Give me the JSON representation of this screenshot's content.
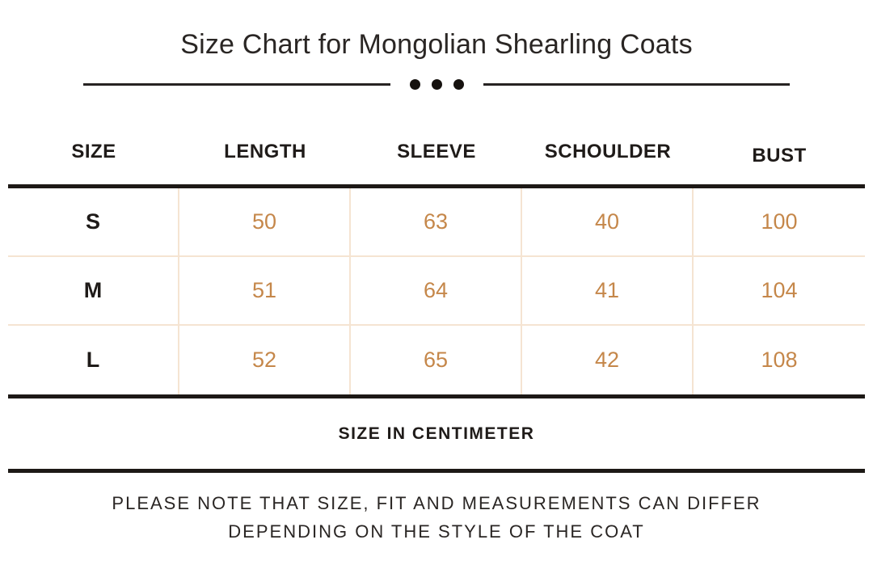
{
  "title": "Size Chart for Mongolian Shearling Coats",
  "chart_data": {
    "type": "table",
    "title": "Size Chart for Mongolian Shearling Coats",
    "columns": [
      "SIZE",
      "LENGTH",
      "SLEEVE",
      "SCHOULDER",
      "BUST"
    ],
    "rows": [
      [
        "S",
        "50",
        "63",
        "40",
        "100"
      ],
      [
        "M",
        "51",
        "64",
        "41",
        "104"
      ],
      [
        "L",
        "52",
        "65",
        "42",
        "108"
      ]
    ],
    "unit": "SIZE IN CENTIMETER"
  },
  "footer": {
    "line1": "PLEASE NOTE THAT SIZE, FIT AND MEASUREMENTS CAN DIFFER",
    "line2": "DEPENDING ON THE STYLE OF THE COAT"
  },
  "colors": {
    "background": "#ffffff",
    "text": "#221e1c",
    "accent_number": "#c5874a",
    "grid_line": "#f5e4d2"
  }
}
